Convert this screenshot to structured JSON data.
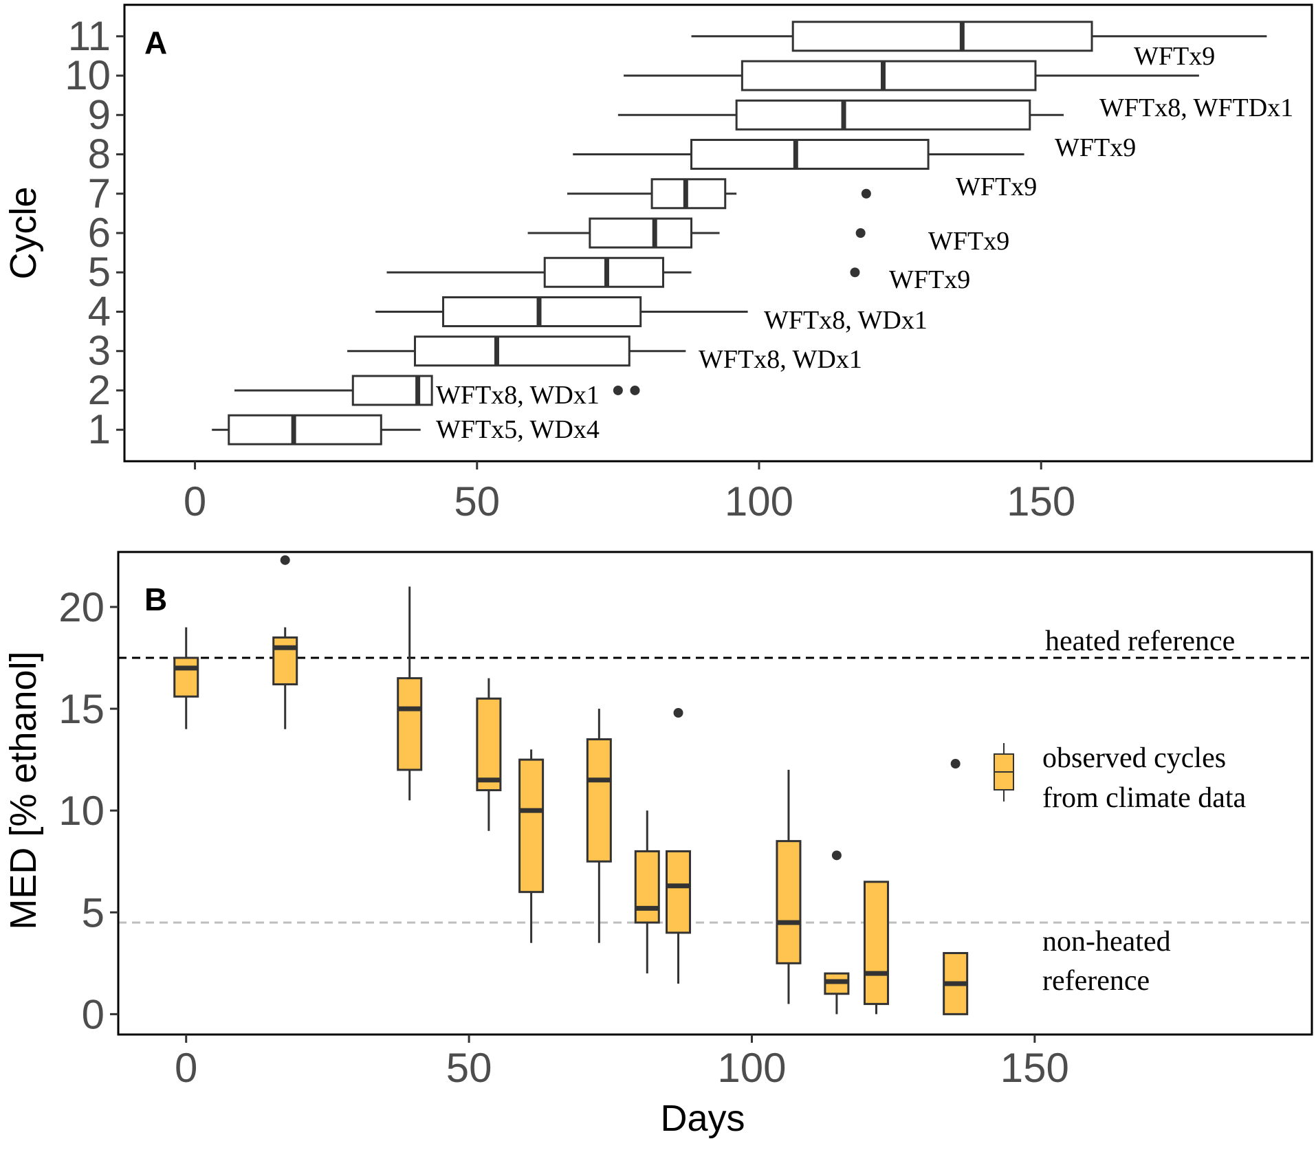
{
  "chart_data": [
    {
      "panel": "A",
      "type": "boxplot",
      "orientation": "horizontal",
      "xlim": [
        -12.5,
        198
      ],
      "x_ticks": [
        "0",
        "50",
        "100",
        "150"
      ],
      "ylabel": "Cycle",
      "ylim": [
        0.2,
        11.8
      ],
      "categories": [
        "1",
        "2",
        "3",
        "4",
        "5",
        "6",
        "7",
        "8",
        "9",
        "10",
        "11"
      ],
      "boxes": [
        {
          "cycle": 1,
          "whisker_low": 3,
          "q1": 6,
          "median": 17.5,
          "q3": 33,
          "whisker_high": 40,
          "outliers": [],
          "label": "WFTx5, WDx4"
        },
        {
          "cycle": 2,
          "whisker_low": 7,
          "q1": 28,
          "median": 39.5,
          "q3": 42,
          "whisker_high": 42,
          "outliers": [
            75,
            78
          ],
          "label": "WFTx8, WDx1"
        },
        {
          "cycle": 3,
          "whisker_low": 27,
          "q1": 39,
          "median": 53.5,
          "q3": 77,
          "whisker_high": 87,
          "outliers": [],
          "label": "WFTx8, WDx1"
        },
        {
          "cycle": 4,
          "whisker_low": 32,
          "q1": 44,
          "median": 61,
          "q3": 79,
          "whisker_high": 98,
          "outliers": [],
          "label": "WFTx8, WDx1"
        },
        {
          "cycle": 5,
          "whisker_low": 34,
          "q1": 62,
          "median": 73,
          "q3": 83,
          "whisker_high": 88,
          "outliers": [
            117
          ],
          "label": "WFTx9"
        },
        {
          "cycle": 6,
          "whisker_low": 59,
          "q1": 70,
          "median": 81.5,
          "q3": 88,
          "whisker_high": 93,
          "outliers": [
            118
          ],
          "label": "WFTx9"
        },
        {
          "cycle": 7,
          "whisker_low": 66,
          "q1": 81,
          "median": 87,
          "q3": 94,
          "whisker_high": 96,
          "outliers": [
            119
          ],
          "label": "WFTx9"
        },
        {
          "cycle": 8,
          "whisker_low": 67,
          "q1": 88,
          "median": 106.5,
          "q3": 130,
          "whisker_high": 147,
          "outliers": [],
          "label": "WFTx9"
        },
        {
          "cycle": 9,
          "whisker_low": 75,
          "q1": 96,
          "median": 115,
          "q3": 148,
          "whisker_high": 154,
          "outliers": [],
          "label": "WFTx8, WFTDx1"
        },
        {
          "cycle": 10,
          "whisker_low": 76,
          "q1": 97,
          "median": 122,
          "q3": 149,
          "whisker_high": 178,
          "outliers": [],
          "label": "WFTx8, WFTDx1"
        },
        {
          "cycle": 11,
          "whisker_low": 88,
          "q1": 106,
          "median": 136,
          "q3": 159,
          "whisker_high": 190,
          "outliers": [],
          "label": "WFTx9"
        }
      ]
    },
    {
      "panel": "B",
      "type": "boxplot",
      "orientation": "vertical",
      "xlabel": "Days",
      "ylabel": "MED [% ethanol]",
      "xlim": [
        -12,
        199
      ],
      "ylim": [
        -1,
        22.7
      ],
      "x_ticks": [
        "0",
        "50",
        "100",
        "150"
      ],
      "y_ticks": [
        "0",
        "5",
        "10",
        "15",
        "20"
      ],
      "box_color": "#ffc44f",
      "boxes": [
        {
          "x": 0,
          "whisker_low": 14,
          "q1": 15.6,
          "median": 17,
          "q3": 17.5,
          "whisker_high": 19,
          "outliers": []
        },
        {
          "x": 17.5,
          "whisker_low": 14,
          "q1": 16.2,
          "median": 18,
          "q3": 18.5,
          "whisker_high": 19,
          "outliers": [
            22.3
          ]
        },
        {
          "x": 39.5,
          "whisker_low": 10.5,
          "q1": 12,
          "median": 15,
          "q3": 16.5,
          "whisker_high": 21,
          "outliers": []
        },
        {
          "x": 53.5,
          "whisker_low": 9,
          "q1": 11,
          "median": 11.5,
          "q3": 15.5,
          "whisker_high": 16.5,
          "outliers": []
        },
        {
          "x": 61,
          "whisker_low": 3.5,
          "q1": 6,
          "median": 10,
          "q3": 12.5,
          "whisker_high": 13,
          "outliers": []
        },
        {
          "x": 73,
          "whisker_low": 3.5,
          "q1": 7.5,
          "median": 11.5,
          "q3": 13.5,
          "whisker_high": 15,
          "outliers": []
        },
        {
          "x": 81.5,
          "whisker_low": 2,
          "q1": 4.5,
          "median": 5.2,
          "q3": 8,
          "whisker_high": 10,
          "outliers": []
        },
        {
          "x": 87,
          "whisker_low": 1.5,
          "q1": 4,
          "median": 6.3,
          "q3": 8,
          "whisker_high": 8,
          "outliers": [
            14.8
          ]
        },
        {
          "x": 106.5,
          "whisker_low": 0.5,
          "q1": 2.5,
          "median": 4.5,
          "q3": 8.5,
          "whisker_high": 12,
          "outliers": []
        },
        {
          "x": 115,
          "whisker_low": 0,
          "q1": 1,
          "median": 1.6,
          "q3": 2,
          "whisker_high": 2,
          "outliers": [
            7.8
          ]
        },
        {
          "x": 122,
          "whisker_low": 0,
          "q1": 0.5,
          "median": 2,
          "q3": 6.5,
          "whisker_high": 6.5,
          "outliers": []
        },
        {
          "x": 136,
          "whisker_low": 0,
          "q1": 0,
          "median": 1.5,
          "q3": 3,
          "whisker_high": 3,
          "outliers": [
            12.3
          ]
        }
      ],
      "reference_lines": [
        {
          "name": "heated reference",
          "y": 17.5,
          "color": "#000000"
        },
        {
          "name": "non-heated reference",
          "y": 4.5,
          "color": "#bfbfbf"
        }
      ],
      "reference_labels": {
        "heated": [
          "heated reference"
        ],
        "non_heated": [
          "non-heated",
          "reference"
        ]
      },
      "legend": {
        "placement": "right",
        "label": [
          "observed cycles",
          "from climate data"
        ]
      }
    }
  ]
}
